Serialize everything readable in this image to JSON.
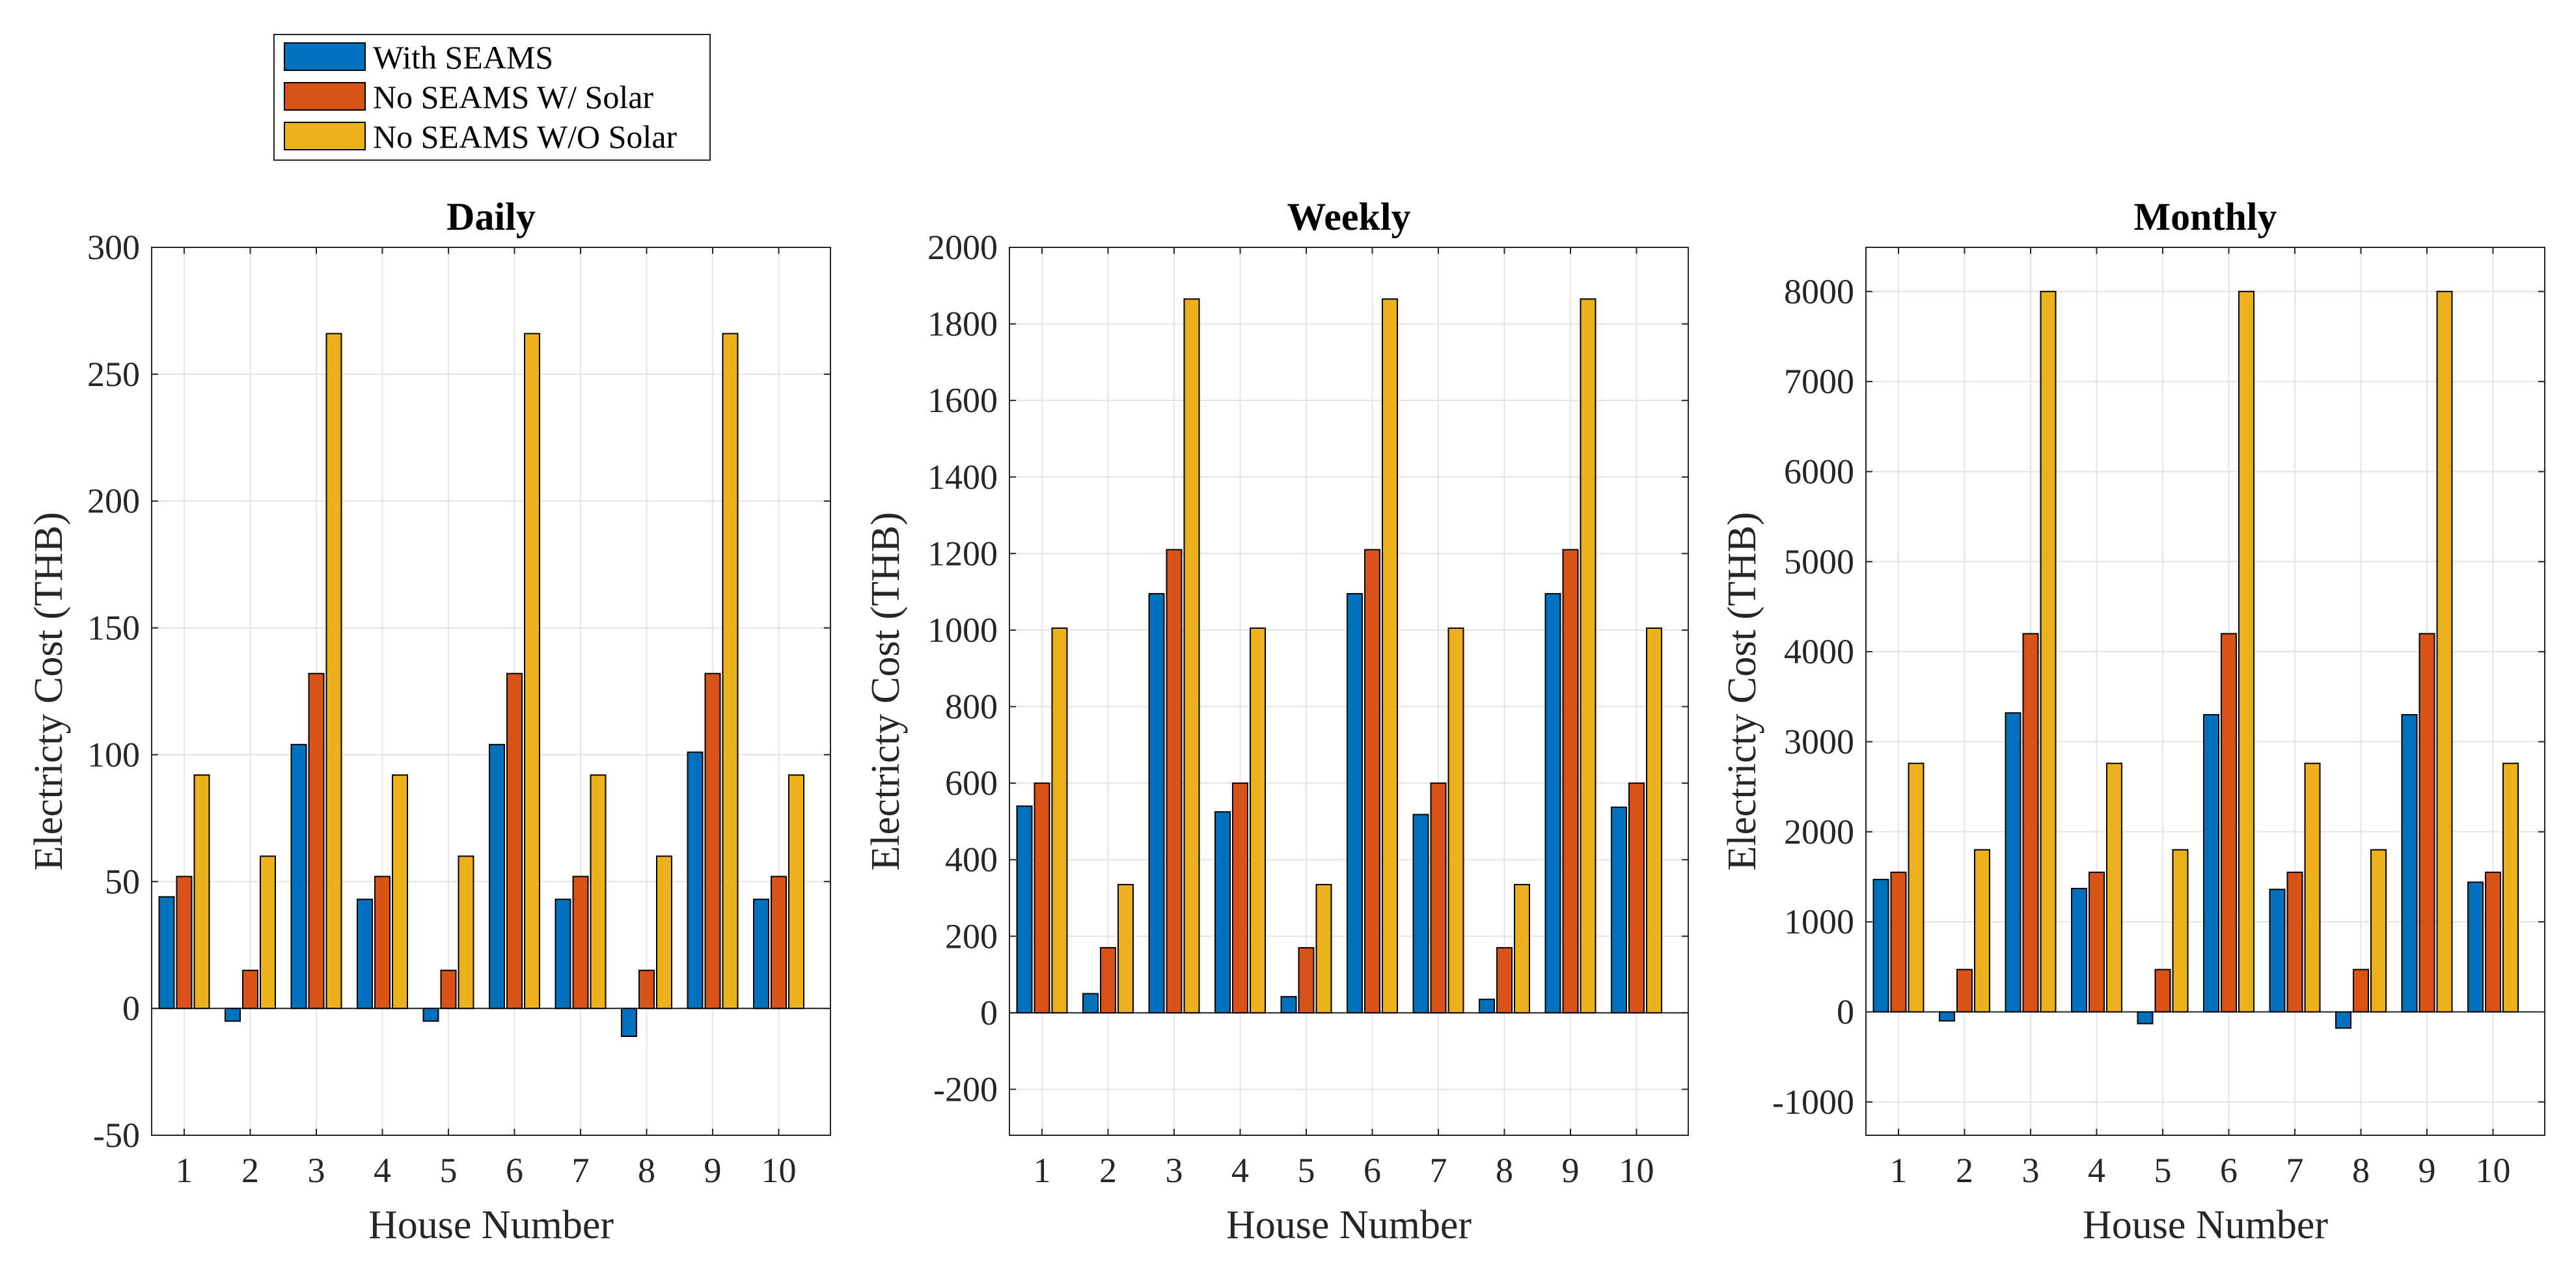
{
  "legend": {
    "entries": [
      {
        "label": "With SEAMS",
        "color": "#0072BD"
      },
      {
        "label": "No SEAMS W/ Solar",
        "color": "#D95319"
      },
      {
        "label": "No SEAMS W/O Solar",
        "color": "#EDB120"
      }
    ]
  },
  "chart_data": [
    {
      "type": "bar",
      "title": "Daily",
      "xlabel": "House Number",
      "ylabel": "Electricty Cost (THB)",
      "categories": [
        "1",
        "2",
        "3",
        "4",
        "5",
        "6",
        "7",
        "8",
        "9",
        "10"
      ],
      "ylim": [
        -50,
        300
      ],
      "yticks": [
        -50,
        0,
        50,
        100,
        150,
        200,
        250,
        300
      ],
      "ytick_labels": [
        "-50",
        "0",
        "50",
        "100",
        "150",
        "200",
        "250",
        "300"
      ],
      "grid": true,
      "series": [
        {
          "name": "With SEAMS",
          "values": [
            44,
            -5,
            104,
            43,
            -5,
            104,
            43,
            -11,
            101,
            43
          ]
        },
        {
          "name": "No SEAMS W/ Solar",
          "values": [
            52,
            15,
            132,
            52,
            15,
            132,
            52,
            15,
            132,
            52
          ]
        },
        {
          "name": "No SEAMS W/O Solar",
          "values": [
            92,
            60,
            266,
            92,
            60,
            266,
            92,
            60,
            266,
            92
          ]
        }
      ]
    },
    {
      "type": "bar",
      "title": "Weekly",
      "xlabel": "House Number",
      "ylabel": "Electricty Cost (THB)",
      "categories": [
        "1",
        "2",
        "3",
        "4",
        "5",
        "6",
        "7",
        "8",
        "9",
        "10"
      ],
      "ylim": [
        -320,
        2000
      ],
      "yticks": [
        -200,
        0,
        200,
        400,
        600,
        800,
        1000,
        1200,
        1400,
        1600,
        1800,
        2000
      ],
      "ytick_labels": [
        "-200",
        "0",
        "200",
        "400",
        "600",
        "800",
        "1000",
        "1200",
        "1400",
        "1600",
        "1800",
        "2000"
      ],
      "grid": true,
      "series": [
        {
          "name": "With SEAMS",
          "values": [
            540,
            50,
            1095,
            525,
            42,
            1095,
            518,
            35,
            1095,
            537
          ]
        },
        {
          "name": "No SEAMS W/ Solar",
          "values": [
            600,
            170,
            1210,
            600,
            170,
            1210,
            600,
            170,
            1210,
            600
          ]
        },
        {
          "name": "No SEAMS W/O Solar",
          "values": [
            1005,
            335,
            1865,
            1005,
            335,
            1865,
            1005,
            335,
            1865,
            1005
          ]
        }
      ]
    },
    {
      "type": "bar",
      "title": "Monthly",
      "xlabel": "House Number",
      "ylabel": "Electricty Cost (THB)",
      "categories": [
        "1",
        "2",
        "3",
        "4",
        "5",
        "6",
        "7",
        "8",
        "9",
        "10"
      ],
      "ylim": [
        -1370,
        8490
      ],
      "yticks": [
        -1000,
        0,
        1000,
        2000,
        3000,
        4000,
        5000,
        6000,
        7000,
        8000
      ],
      "ytick_labels": [
        "-1000",
        "0",
        "1000",
        "2000",
        "3000",
        "4000",
        "5000",
        "6000",
        "7000",
        "8000"
      ],
      "grid": true,
      "series": [
        {
          "name": "With SEAMS",
          "values": [
            1470,
            -100,
            3320,
            1370,
            -130,
            3300,
            1360,
            -180,
            3300,
            1440
          ]
        },
        {
          "name": "No SEAMS W/ Solar",
          "values": [
            1550,
            470,
            4200,
            1550,
            470,
            4200,
            1550,
            470,
            4200,
            1550
          ]
        },
        {
          "name": "No SEAMS W/O Solar",
          "values": [
            2760,
            1800,
            8000,
            2760,
            1800,
            8000,
            2760,
            1800,
            8000,
            2760
          ]
        }
      ]
    }
  ]
}
